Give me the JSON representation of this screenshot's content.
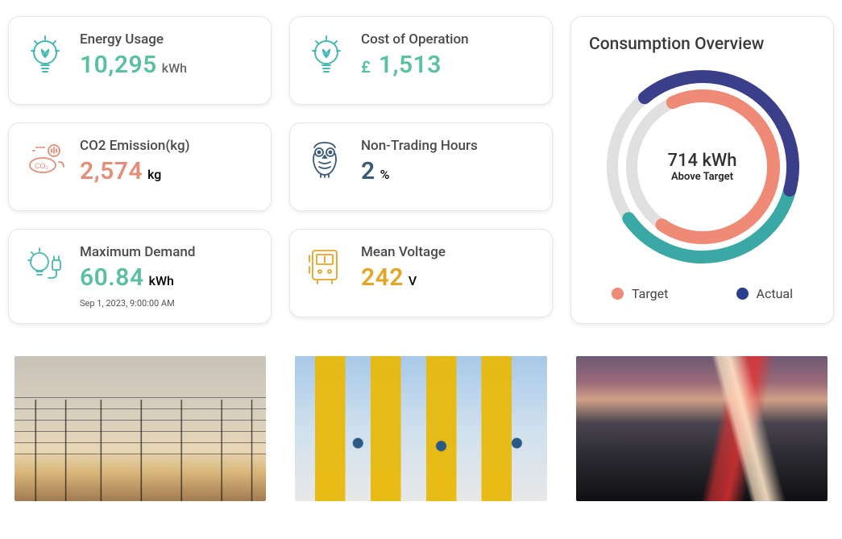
{
  "cards": {
    "energy": {
      "title": "Energy Usage",
      "value": "10,295",
      "unit": "kWh",
      "value_color": "#59c1a1",
      "unit_color": "#666666",
      "icon_color": "#47b7b3"
    },
    "cost": {
      "title": "Cost of Operation",
      "prefix": "£",
      "value": "1,513",
      "value_color": "#59c1a1",
      "unit_color": "#666666",
      "icon_color": "#47b7b3"
    },
    "co2": {
      "title": "CO2 Emission(kg)",
      "value": "2,574",
      "unit": "kg",
      "value_color": "#e58d79",
      "unit_color": "#666666",
      "icon_color": "#e58d79"
    },
    "nontrading": {
      "title": "Non-Trading Hours",
      "value": "2",
      "unit": "%",
      "value_color": "#3a5a78",
      "unit_color": "#666666",
      "icon_color": "#3a5a78"
    },
    "maxdemand": {
      "title": "Maximum Demand",
      "value": "60.84",
      "unit": "kWh",
      "sub": "Sep 1, 2023, 9:00:00 AM",
      "value_color": "#59c1a1",
      "unit_color": "#666666",
      "icon_color": "#47b7b3"
    },
    "voltage": {
      "title": "Mean Voltage",
      "value": "242",
      "unit": "V",
      "value_color": "#e6a426",
      "unit_color": "#666666",
      "icon_color": "#e6a426"
    }
  },
  "overview": {
    "title": "Consumption Overview",
    "center_value": "714 kWh",
    "center_label": "Above Target",
    "legend": {
      "target": {
        "label": "Target",
        "color": "#ef8a76"
      },
      "actual": {
        "label": "Actual",
        "color": "#2c3f8f"
      }
    },
    "rings": {
      "track_color": "#e0e0e0",
      "outer_main": {
        "color": "#3b3f8a",
        "start_deg": -40,
        "sweep_deg": 145,
        "radius": 112,
        "width": 16
      },
      "outer_teal": {
        "color": "#3aa9a6",
        "start_deg": 105,
        "sweep_deg": 130,
        "radius": 112,
        "width": 16
      },
      "inner_main": {
        "color": "#ef8a76",
        "start_deg": -25,
        "sweep_deg": 240,
        "radius": 88,
        "width": 16
      }
    }
  }
}
